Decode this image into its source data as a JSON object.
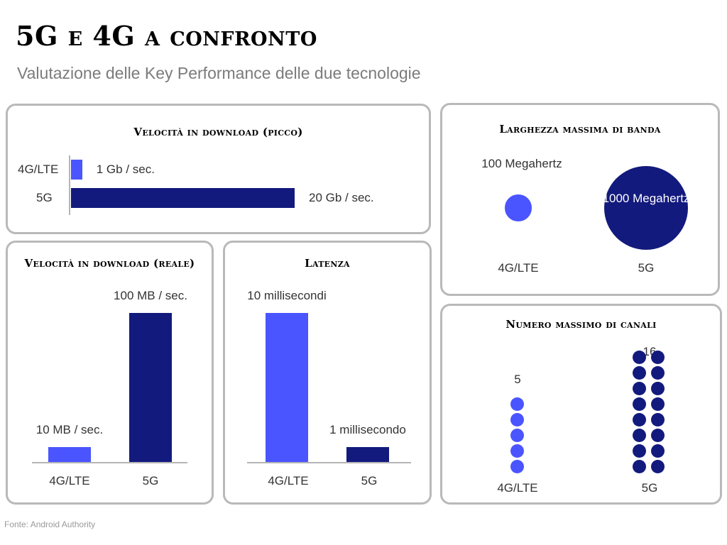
{
  "title": "5G e 4G a confronto",
  "subtitle": "Valutazione delle Key Performance delle due tecnologie",
  "source": "Fonte: Android Authority",
  "colors": {
    "lte": "#4a55ff",
    "g5": "#131a7d"
  },
  "chart_data": [
    {
      "id": "peak",
      "type": "bar",
      "orientation": "horizontal",
      "title": "Velocità in download (picco)",
      "categories": [
        "4G/LTE",
        "5G"
      ],
      "values": [
        1,
        20
      ],
      "value_labels": [
        "1 Gb / sec.",
        "20 Gb / sec."
      ],
      "unit": "Gb / sec."
    },
    {
      "id": "real",
      "type": "bar",
      "orientation": "vertical",
      "title": "Velocità in download (reale)",
      "categories": [
        "4G/LTE",
        "5G"
      ],
      "values": [
        10,
        100
      ],
      "value_labels": [
        "10 MB / sec.",
        "100 MB / sec."
      ],
      "unit": "MB / sec."
    },
    {
      "id": "latency",
      "type": "bar",
      "orientation": "vertical",
      "title": "Latenza",
      "categories": [
        "4G/LTE",
        "5G"
      ],
      "values": [
        10,
        1
      ],
      "value_labels": [
        "10 millisecondi",
        "1 millisecondo"
      ],
      "unit": "millisecondi"
    },
    {
      "id": "bandwidth",
      "type": "bubble",
      "title": "Larghezza massima di banda",
      "categories": [
        "4G/LTE",
        "5G"
      ],
      "values": [
        100,
        1000
      ],
      "value_labels": [
        "100 Megahertz",
        "1000 Megahertz"
      ],
      "unit": "Megahertz"
    },
    {
      "id": "channels",
      "type": "dot",
      "title": "Numero massimo di canali",
      "categories": [
        "4G/LTE",
        "5G"
      ],
      "values": [
        5,
        16
      ],
      "value_labels": [
        "5",
        "16"
      ]
    }
  ]
}
